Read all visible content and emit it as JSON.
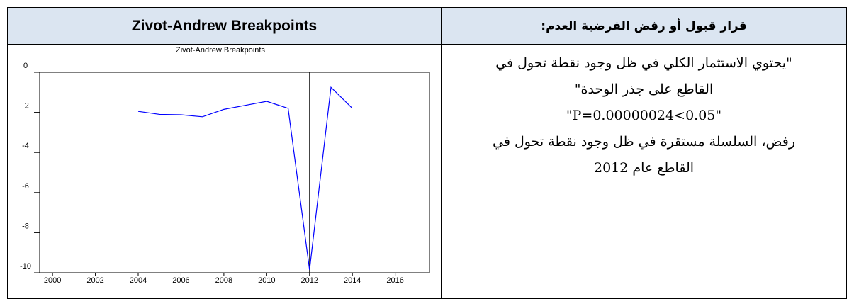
{
  "header": {
    "left": "Zivot-Andrew Breakpoints",
    "right": "قرار قبول أو رفض الفرضية العدم:"
  },
  "body_text": [
    "\"يحتوي الاستثمار الكلي في ظل وجود نقطة تحول في",
    "القاطع على جذر الوحدة\"",
    "\"P=0.00000024<0.05\"",
    "رفض، السلسلة مستقرة في ظل وجود نقطة تحول في",
    "القاطع عام 2012"
  ],
  "chart_data": {
    "type": "line",
    "title": "Zivot-Andrew Breakpoints",
    "x": [
      2004,
      2005,
      2006,
      2007,
      2008,
      2009,
      2010,
      2011,
      2012,
      2013,
      2014
    ],
    "series": [
      {
        "color": "#0000ff",
        "values": [
          -1.95,
          -2.1,
          -2.12,
          -2.22,
          -1.85,
          -1.65,
          -1.45,
          -1.8,
          -9.85,
          -0.75,
          -1.8
        ]
      }
    ],
    "breakpoint": 2012,
    "xlim": [
      1999.4,
      2017.6
    ],
    "xticks": [
      2000,
      2002,
      2004,
      2006,
      2008,
      2010,
      2012,
      2014,
      2016
    ],
    "ylim": [
      -10,
      0
    ],
    "yticks": [
      0,
      -2,
      -4,
      -6,
      -8,
      -10
    ]
  }
}
